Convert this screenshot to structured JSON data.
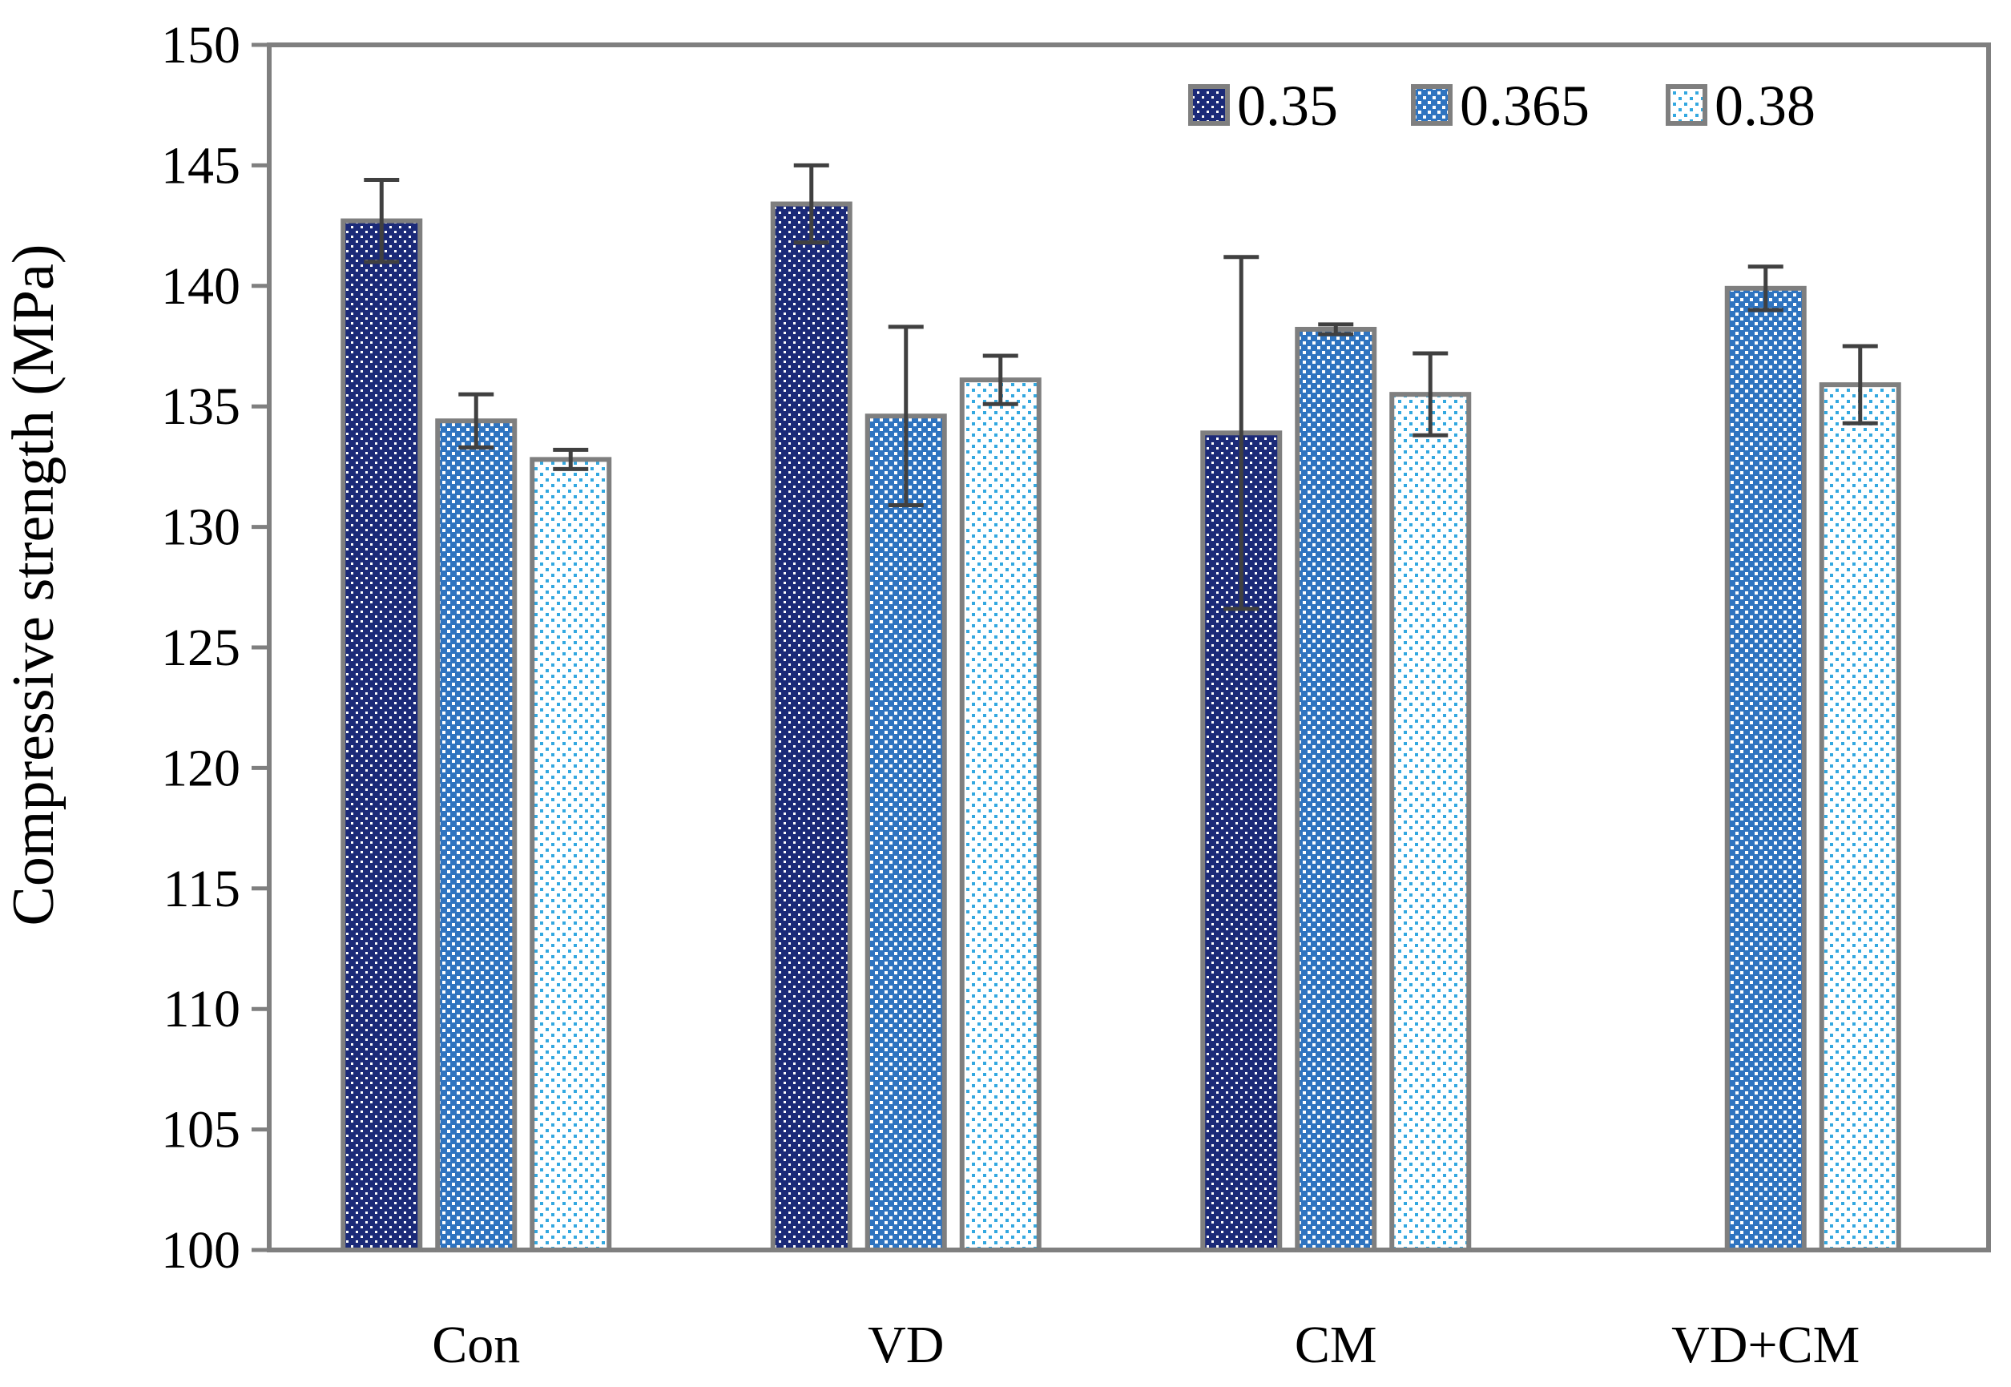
{
  "chart_data": {
    "type": "bar",
    "title": "",
    "xlabel": "",
    "ylabel": "Compressive strength (MPa)",
    "ylim": [
      100,
      150
    ],
    "yticks": [
      100,
      105,
      110,
      115,
      120,
      125,
      130,
      135,
      140,
      145,
      150
    ],
    "grid": false,
    "legend_position": "top-right",
    "categories": [
      "Con",
      "VD",
      "CM",
      "VD+CM"
    ],
    "series": [
      {
        "name": "0.35",
        "color": "#1b2a78",
        "pattern": "dense-check",
        "values": [
          142.7,
          143.4,
          133.9,
          null
        ],
        "errors": [
          1.7,
          1.6,
          7.3,
          null
        ]
      },
      {
        "name": "0.365",
        "color": "#2f74c0",
        "pattern": "medium-check",
        "values": [
          134.4,
          134.6,
          138.2,
          139.9
        ],
        "errors": [
          1.1,
          3.7,
          0.2,
          0.9
        ]
      },
      {
        "name": "0.38",
        "color": "#33a8e0",
        "pattern": "light-dots",
        "values": [
          132.8,
          136.1,
          135.5,
          135.9
        ],
        "errors": [
          0.4,
          1.0,
          1.7,
          1.6
        ]
      }
    ],
    "colors": {
      "axis": "#7f7f7f",
      "bar_outline": "#7f7f7f",
      "error_bar": "#404040"
    }
  }
}
